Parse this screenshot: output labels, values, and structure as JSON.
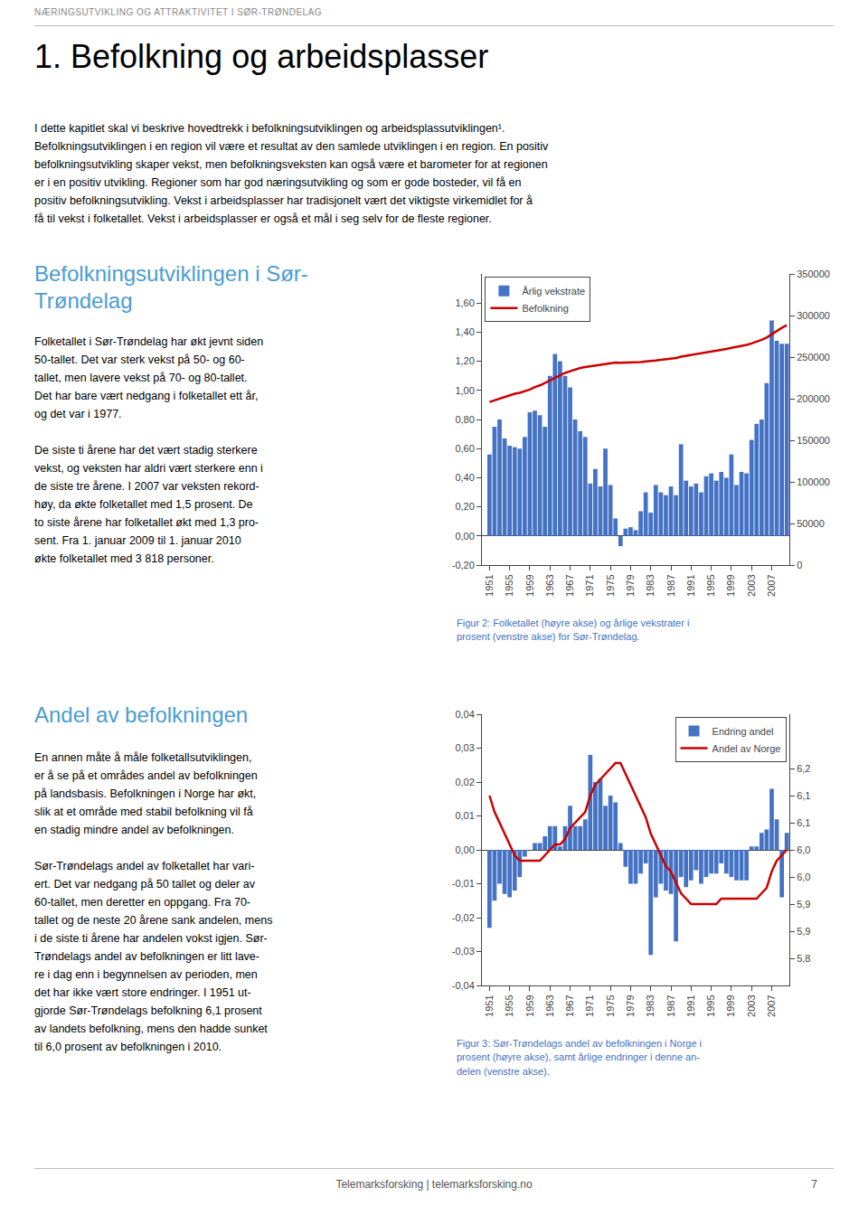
{
  "header": {
    "text": "NÆRINGSUTVIKLING OG ATTRAKTIVITET I SØR-TRØNDELAG",
    "color": "#888888"
  },
  "title": "1. Befolkning og arbeidsplasser",
  "intro": "I dette kapitlet skal vi beskrive hovedtrekk i befolkningsutviklingen og arbeidsplassutviklingen¹.\nBefolkningsutviklingen i en region vil være et resultat av den samlede utviklingen i en region. En positiv\nbefolkningsutvikling skaper vekst, men befolkningsveksten kan også være et barometer for at regionen\ner i en positiv utvikling. Regioner som har god næringsutvikling og som er gode bosteder, vil få en\npositiv befolkningsutvikling. Vekst i arbeidsplasser har tradisjonelt vært det viktigste virkemidlet for å\nfå til vekst i folketallet. Vekst i arbeidsplasser er også et mål i seg selv for de fleste regioner.",
  "sections": [
    {
      "title": "Befolkningsutviklingen i Sør-\nTrøndelag",
      "color": "#4B9CD3",
      "text": "Folketallet i Sør-Trøndelag har økt jevnt siden\n50-tallet. Det var sterk vekst på 50- og 60-\ntallet, men lavere vekst på 70- og 80-tallet.\nDet har bare vært nedgang i folketallet ett år,\nog det var i 1977.\n\nDe siste ti årene har det vært stadig sterkere\nvekst, og veksten har aldri vært sterkere enn i\nde siste tre årene. I 2007 var veksten rekord-\nhøy, da økte folketallet med 1,5 prosent. De\nto siste årene har folketallet økt med 1,3 pro-\nsent. Fra 1. januar 2009 til 1. januar 2010\nøkte folketallet med 3 818 personer."
    },
    {
      "title": "Andel av befolkningen",
      "color": "#4B9CD3",
      "text": "En annen måte å måle folketallsutviklingen,\ner å se på et områdes andel av befolkningen\npå landsbasis. Befolkningen i Norge har økt,\nslik at et område med stabil befolkning vil få\nen stadig mindre andel av befolkningen.\n\nSør-Trøndelags andel av folketallet har vari-\nert. Det var nedgang på 50 tallet og deler av\n60-tallet, men deretter en oppgang. Fra 70-\ntallet og de neste 20 årene sank andelen, mens\ni de siste ti årene har andelen vokst igjen. Sør-\nTrøndelags andel av befolkningen er litt lave-\nre i dag enn i begynnelsen av perioden, men\ndet har ikke vært store endringer. I 1951 ut-\ngjorde Sør-Trøndelags befolkning 6,1 prosent\nav landets befolkning, mens den hadde sunket\ntil 6,0 prosent av befolkningen i 2010."
    }
  ],
  "footer": {
    "text": "Telemarksforsking  |  telemarksforsking.no",
    "page_number": "7"
  },
  "background_color": "#FFFFFF",
  "chart_data": [
    {
      "type": "bar",
      "caption": {
        "text": "Figur 2: Folketallet (høyre akse) og årlige vekstrater i\nprosent (venstre akse) for Sør-Trøndelag.",
        "color": "#4472C4"
      },
      "x": [
        1951,
        1952,
        1953,
        1954,
        1955,
        1956,
        1957,
        1958,
        1959,
        1960,
        1961,
        1962,
        1963,
        1964,
        1965,
        1966,
        1967,
        1968,
        1969,
        1970,
        1971,
        1972,
        1973,
        1974,
        1975,
        1976,
        1977,
        1978,
        1979,
        1980,
        1981,
        1982,
        1983,
        1984,
        1985,
        1986,
        1987,
        1988,
        1989,
        1990,
        1991,
        1992,
        1993,
        1994,
        1995,
        1996,
        1997,
        1998,
        1999,
        2000,
        2001,
        2002,
        2003,
        2004,
        2005,
        2006,
        2007,
        2008,
        2009,
        2010
      ],
      "series": [
        {
          "name": "Årlig vekstrate",
          "type": "bar",
          "color": "#4472C4",
          "values": [
            0.56,
            0.75,
            0.8,
            0.67,
            0.62,
            0.61,
            0.6,
            0.68,
            0.85,
            0.86,
            0.83,
            0.75,
            1.1,
            1.25,
            1.2,
            1.1,
            1.02,
            0.8,
            0.72,
            0.68,
            0.36,
            0.46,
            0.34,
            0.6,
            0.35,
            0.12,
            -0.07,
            0.05,
            0.06,
            0.04,
            0.17,
            0.3,
            0.16,
            0.35,
            0.3,
            0.28,
            0.34,
            0.28,
            0.63,
            0.38,
            0.34,
            0.36,
            0.3,
            0.41,
            0.43,
            0.38,
            0.44,
            0.4,
            0.56,
            0.35,
            0.44,
            0.43,
            0.66,
            0.77,
            0.8,
            1.05,
            1.48,
            1.34,
            1.32,
            1.32
          ]
        },
        {
          "name": "Befolkning",
          "type": "line",
          "color": "#CC0000",
          "axis": "y2",
          "values": [
            196000,
            198000,
            200000,
            202000,
            204000,
            206000,
            207000,
            209000,
            211000,
            214000,
            216000,
            219000,
            222000,
            225000,
            228000,
            231000,
            233000,
            235000,
            237000,
            238000,
            239000,
            240000,
            241000,
            242000,
            243000,
            243500,
            243200,
            243300,
            243500,
            243700,
            244000,
            244800,
            245200,
            246000,
            246800,
            247500,
            248300,
            249000,
            250600,
            251600,
            252500,
            253400,
            254200,
            255300,
            256400,
            257400,
            258600,
            259700,
            261200,
            262200,
            263400,
            264600,
            266400,
            268500,
            270700,
            273600,
            277700,
            281500,
            285200,
            288500
          ]
        }
      ],
      "xlim": [
        1949.5,
        2010.5
      ],
      "xticks": [
        1951,
        1955,
        1959,
        1963,
        1967,
        1971,
        1975,
        1979,
        1983,
        1987,
        1991,
        1995,
        1999,
        2003,
        2007
      ],
      "ylim": [
        -0.2,
        1.8
      ],
      "yticks": [
        {
          "value": -0.2,
          "label": "-0,20"
        },
        {
          "value": 0.0,
          "label": "0,00"
        },
        {
          "value": 0.2,
          "label": "0,20"
        },
        {
          "value": 0.4,
          "label": "0,40"
        },
        {
          "value": 0.6,
          "label": "0,60"
        },
        {
          "value": 0.8,
          "label": "0,80"
        },
        {
          "value": 1.0,
          "label": "1,00"
        },
        {
          "value": 1.2,
          "label": "1,20"
        },
        {
          "value": 1.4,
          "label": "1,40"
        },
        {
          "value": 1.6,
          "label": "1,60"
        }
      ],
      "y2lim": [
        0,
        350000
      ],
      "y2ticks": [
        0,
        50000,
        100000,
        150000,
        200000,
        250000,
        300000,
        350000
      ],
      "grid": false,
      "legend": "upper left"
    },
    {
      "type": "bar",
      "caption": {
        "text": "Figur 3: Sør-Trøndelags andel av befolkningen i Norge i\nprosent (høyre akse), samt årlige endringer i denne an-\ndelen (venstre akse).",
        "color": "#4472C4"
      },
      "x": [
        1951,
        1952,
        1953,
        1954,
        1955,
        1956,
        1957,
        1958,
        1959,
        1960,
        1961,
        1962,
        1963,
        1964,
        1965,
        1966,
        1967,
        1968,
        1969,
        1970,
        1971,
        1972,
        1973,
        1974,
        1975,
        1976,
        1977,
        1978,
        1979,
        1980,
        1981,
        1982,
        1983,
        1984,
        1985,
        1986,
        1987,
        1988,
        1989,
        1990,
        1991,
        1992,
        1993,
        1994,
        1995,
        1996,
        1997,
        1998,
        1999,
        2000,
        2001,
        2002,
        2003,
        2004,
        2005,
        2006,
        2007,
        2008,
        2009,
        2010
      ],
      "series": [
        {
          "name": "Endring andel",
          "type": "bar",
          "color": "#4472C4",
          "values": [
            -0.023,
            -0.015,
            -0.01,
            -0.013,
            -0.014,
            -0.012,
            -0.008,
            -0.002,
            0.0,
            0.002,
            0.002,
            0.004,
            0.007,
            0.007,
            0.001,
            0.007,
            0.013,
            0.007,
            0.007,
            0.009,
            0.028,
            0.02,
            0.021,
            0.013,
            0.016,
            0.014,
            0.002,
            -0.005,
            -0.01,
            -0.01,
            -0.007,
            -0.004,
            -0.031,
            -0.014,
            -0.01,
            -0.012,
            -0.013,
            -0.027,
            -0.008,
            -0.011,
            -0.009,
            -0.006,
            -0.01,
            -0.008,
            -0.007,
            -0.007,
            -0.004,
            -0.007,
            -0.008,
            -0.009,
            -0.009,
            -0.009,
            0.001,
            0.001,
            0.005,
            0.006,
            0.018,
            0.009,
            -0.014,
            0.005
          ]
        },
        {
          "name": "Andel av Norge",
          "type": "line",
          "color": "#CC0000",
          "axis": "y2",
          "values": [
            6.1,
            6.07,
            6.05,
            6.03,
            6.01,
            5.99,
            5.98,
            5.98,
            5.98,
            5.98,
            5.98,
            5.99,
            6.0,
            6.01,
            6.01,
            6.02,
            6.04,
            6.05,
            6.06,
            6.07,
            6.1,
            6.12,
            6.13,
            6.14,
            6.15,
            6.16,
            6.16,
            6.14,
            6.12,
            6.1,
            6.08,
            6.06,
            6.03,
            6.01,
            5.99,
            5.97,
            5.96,
            5.94,
            5.92,
            5.91,
            5.9,
            5.9,
            5.9,
            5.9,
            5.9,
            5.9,
            5.91,
            5.91,
            5.91,
            5.91,
            5.91,
            5.91,
            5.91,
            5.91,
            5.92,
            5.93,
            5.96,
            5.98,
            5.99,
            6.0
          ]
        }
      ],
      "xlim": [
        1949.5,
        2010.5
      ],
      "xticks": [
        1951,
        1955,
        1959,
        1963,
        1967,
        1971,
        1975,
        1979,
        1983,
        1987,
        1991,
        1995,
        1999,
        2003,
        2007
      ],
      "ylim": [
        -0.04,
        0.04
      ],
      "yticks": [
        {
          "value": -0.04,
          "label": "-0,04"
        },
        {
          "value": -0.03,
          "label": "-0,03"
        },
        {
          "value": -0.02,
          "label": "-0,02"
        },
        {
          "value": -0.01,
          "label": "-0,01"
        },
        {
          "value": 0.0,
          "label": "0,00"
        },
        {
          "value": 0.01,
          "label": "0,01"
        },
        {
          "value": 0.02,
          "label": "0,02"
        },
        {
          "value": 0.03,
          "label": "0,03"
        },
        {
          "value": 0.04,
          "label": "0,04"
        }
      ],
      "y2lim": [
        5.75,
        6.25
      ],
      "y2ticks": [
        {
          "value": 5.8,
          "label": "5,8"
        },
        {
          "value": 5.85,
          "label": "5,9"
        },
        {
          "value": 5.9,
          "label": "5,9"
        },
        {
          "value": 5.95,
          "label": "6,0"
        },
        {
          "value": 6.0,
          "label": "6,0"
        },
        {
          "value": 6.05,
          "label": "6,1"
        },
        {
          "value": 6.1,
          "label": "6,1"
        },
        {
          "value": 6.15,
          "label": "6,2"
        }
      ],
      "grid": false,
      "legend": "upper right"
    }
  ]
}
